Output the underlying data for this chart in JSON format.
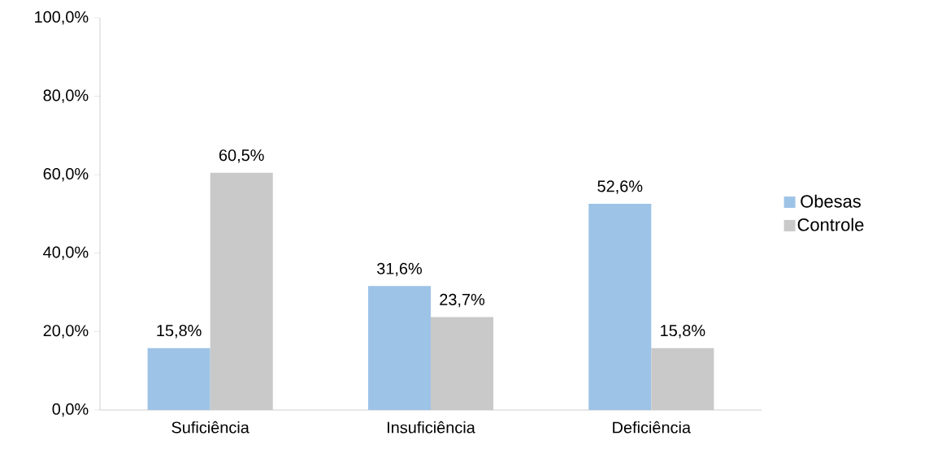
{
  "chart_data": {
    "type": "bar",
    "categories": [
      "Suficiência",
      "Insuficiência",
      "Deficiência"
    ],
    "series": [
      {
        "name": "Obesas",
        "color": "#9dc3e6",
        "values": [
          15.8,
          31.6,
          52.6
        ],
        "value_labels": [
          "15,8%",
          "31,6%",
          "52,6%"
        ]
      },
      {
        "name": "Controle",
        "color": "#c9c9c9",
        "values": [
          60.5,
          23.7,
          15.8
        ],
        "value_labels": [
          "60,5%",
          "23,7%",
          "15,8%"
        ]
      }
    ],
    "ylim": [
      0,
      100
    ],
    "yticks": [
      {
        "value": 0,
        "label": "0,0%"
      },
      {
        "value": 20,
        "label": "20,0%"
      },
      {
        "value": 40,
        "label": "40,0%"
      },
      {
        "value": 60,
        "label": "60,0%"
      },
      {
        "value": 80,
        "label": "80,0%"
      },
      {
        "value": 100,
        "label": "100,0%"
      }
    ],
    "legend": "right"
  }
}
